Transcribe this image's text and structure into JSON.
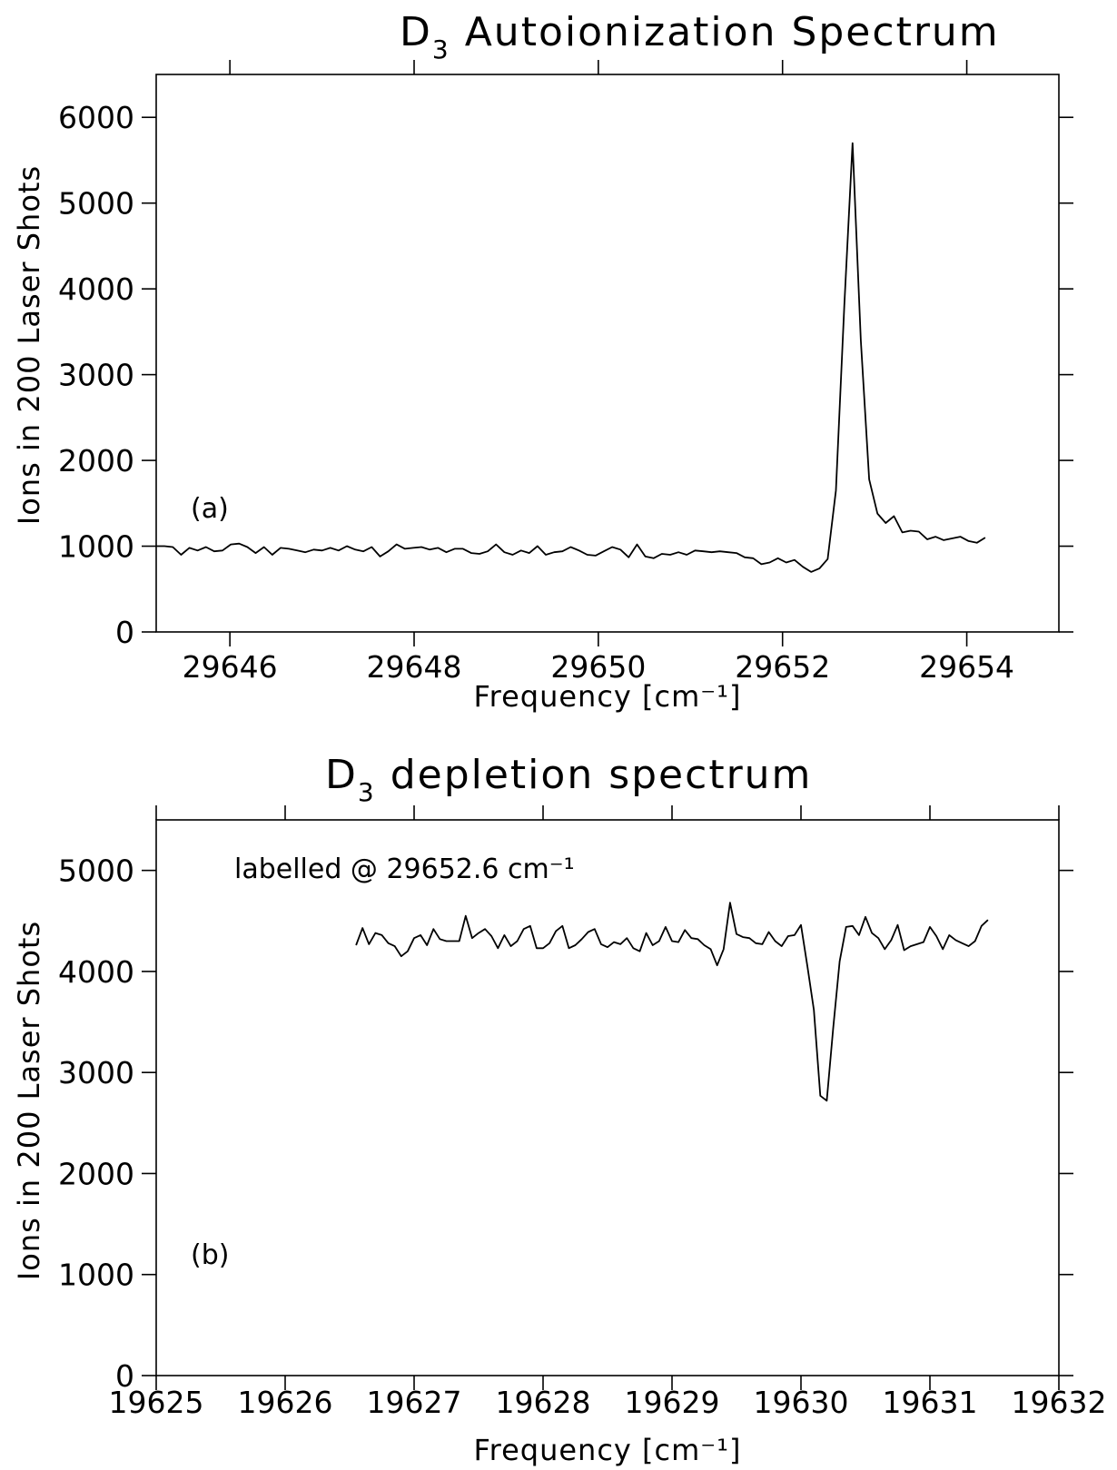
{
  "chart_data": [
    {
      "id": "a",
      "type": "line",
      "title": "D3 Autoionization Spectrum",
      "title_main": "D",
      "title_sub": "3",
      "title_rest": " Autoionization Spectrum",
      "xlabel": "Frequency [cm⁻¹]",
      "ylabel": "Ions in 200 Laser Shots",
      "panel_label": "(a)",
      "xlim": [
        29645.2,
        29655
      ],
      "ylim": [
        0,
        6500
      ],
      "xticks": [
        29646,
        29648,
        29650,
        29652,
        29654
      ],
      "xtick_labels": [
        "29646",
        "29648",
        "29650",
        "29652",
        "29654"
      ],
      "yticks": [
        0,
        1000,
        2000,
        3000,
        4000,
        5000,
        6000
      ],
      "ytick_labels": [
        "0",
        "1000",
        "2000",
        "3000",
        "4000",
        "5000",
        "6000"
      ],
      "grid": false,
      "series": [
        {
          "x_start": 29645.2,
          "x_step": 0.09,
          "values": [
            1000,
            1000,
            990,
            900,
            980,
            950,
            990,
            940,
            950,
            1020,
            1030,
            990,
            920,
            990,
            900,
            980,
            970,
            950,
            930,
            960,
            950,
            980,
            950,
            1000,
            960,
            940,
            990,
            880,
            940,
            1020,
            970,
            980,
            990,
            960,
            980,
            930,
            970,
            970,
            920,
            910,
            940,
            1020,
            930,
            900,
            950,
            920,
            1000,
            900,
            930,
            940,
            990,
            950,
            900,
            890,
            940,
            990,
            960,
            870,
            1020,
            880,
            860,
            910,
            900,
            930,
            900,
            950,
            940,
            930,
            940,
            930,
            920,
            870,
            860,
            790,
            810,
            860,
            810,
            840,
            760,
            700,
            740,
            850,
            1650,
            3800,
            5700,
            3400,
            1780,
            1380,
            1270,
            1350,
            1160,
            1180,
            1170,
            1080,
            1110,
            1070,
            1090,
            1110,
            1060,
            1040,
            1100
          ]
        }
      ]
    },
    {
      "id": "b",
      "type": "line",
      "title": "D3 depletion spectrum",
      "title_main": "D",
      "title_sub": "3",
      "title_rest": " depletion spectrum",
      "xlabel": "Frequency [cm⁻¹]",
      "ylabel": "Ions in 200 Laser Shots",
      "panel_label": "(b)",
      "annotation": "labelled @ 29652.6 cm⁻¹",
      "xlim": [
        19625,
        19632
      ],
      "ylim": [
        0,
        5500
      ],
      "xticks": [
        19625,
        19626,
        19627,
        19628,
        19629,
        19630,
        19631,
        19632
      ],
      "xtick_labels": [
        "19625",
        "19626",
        "19627",
        "19628",
        "19629",
        "19630",
        "19631",
        "19632"
      ],
      "yticks": [
        0,
        1000,
        2000,
        3000,
        4000,
        5000
      ],
      "ytick_labels": [
        "0",
        "1000",
        "2000",
        "3000",
        "4000",
        "5000"
      ],
      "grid": false,
      "series": [
        {
          "x_start": 19626.55,
          "x_step": 0.05,
          "values": [
            4260,
            4430,
            4270,
            4380,
            4360,
            4280,
            4250,
            4150,
            4200,
            4330,
            4360,
            4260,
            4420,
            4320,
            4300,
            4300,
            4300,
            4550,
            4330,
            4380,
            4420,
            4350,
            4230,
            4360,
            4250,
            4300,
            4420,
            4450,
            4230,
            4230,
            4280,
            4400,
            4450,
            4230,
            4260,
            4320,
            4390,
            4420,
            4270,
            4240,
            4290,
            4270,
            4330,
            4230,
            4200,
            4380,
            4260,
            4300,
            4440,
            4300,
            4290,
            4410,
            4330,
            4320,
            4260,
            4220,
            4060,
            4220,
            4680,
            4370,
            4340,
            4330,
            4280,
            4270,
            4390,
            4300,
            4250,
            4350,
            4360,
            4460,
            4050,
            3620,
            2770,
            2720,
            3440,
            4100,
            4440,
            4450,
            4360,
            4540,
            4380,
            4330,
            4220,
            4310,
            4460,
            4210,
            4250,
            4270,
            4290,
            4440,
            4350,
            4220,
            4360,
            4310,
            4280,
            4250,
            4300,
            4450,
            4510
          ]
        }
      ]
    }
  ]
}
